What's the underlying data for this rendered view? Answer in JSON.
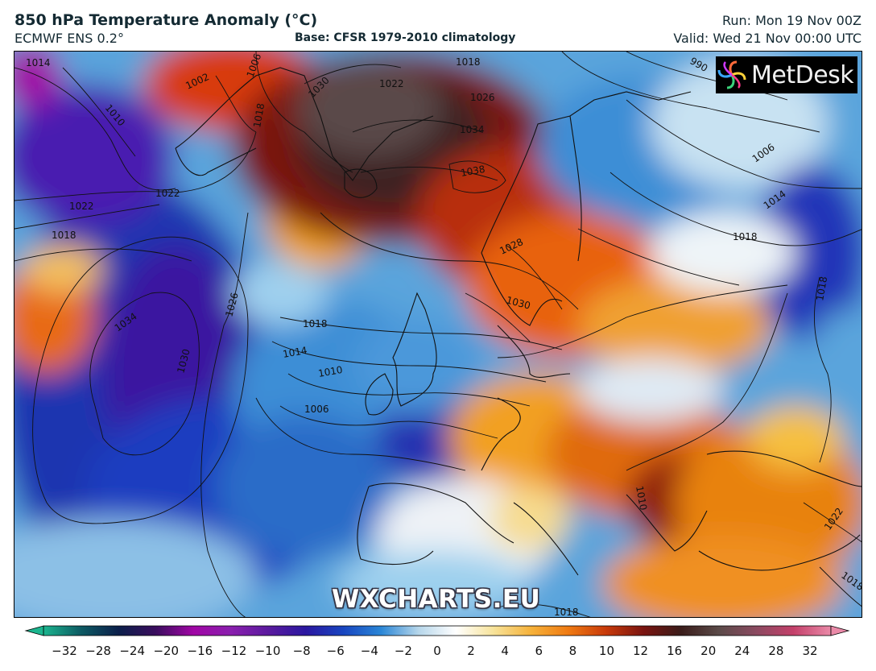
{
  "header": {
    "title": "850 hPa Temperature Anomaly (°C)",
    "model": "ECMWF ENS 0.2°",
    "base": "Base: CFSR 1979-2010 climatology",
    "run": "Run: Mon 19 Nov 00Z",
    "valid": "Valid: Wed 21 Nov 00:00 UTC"
  },
  "logo": {
    "text": "MetDesk"
  },
  "watermark": {
    "text": "WXCHARTS.EU"
  },
  "colorbar": {
    "ticks": [
      "−32",
      "−28",
      "−24",
      "−20",
      "−16",
      "−12",
      "−10",
      "−8",
      "−6",
      "−4",
      "−2",
      "0",
      "2",
      "4",
      "6",
      "8",
      "10",
      "12",
      "16",
      "20",
      "24",
      "28",
      "32"
    ],
    "colors": [
      "#1bb58e",
      "#0d5a63",
      "#0b1f4a",
      "#3a0d5e",
      "#a006a5",
      "#8a1fae",
      "#5a1a9e",
      "#2a17a0",
      "#1845c0",
      "#2a86d6",
      "#b6d6ea",
      "#ffffff",
      "#f7e39a",
      "#f6b23a",
      "#ef7a12",
      "#c83a0a",
      "#7a1410",
      "#3a1c1a",
      "#5a4a48",
      "#8a4a60",
      "#c4406a",
      "#ea8aa8"
    ]
  },
  "isobars": [
    "1014",
    "1010",
    "1022",
    "1022",
    "1018",
    "1034",
    "1030",
    "1026",
    "1006",
    "1006",
    "1002",
    "1030",
    "1018",
    "1022",
    "1026",
    "1034",
    "1038",
    "1018",
    "1028",
    "1030",
    "1018",
    "1014",
    "1010",
    "1006",
    "990",
    "1006",
    "1014",
    "1018",
    "1018",
    "1010",
    "1022",
    "1018",
    "1018"
  ]
}
